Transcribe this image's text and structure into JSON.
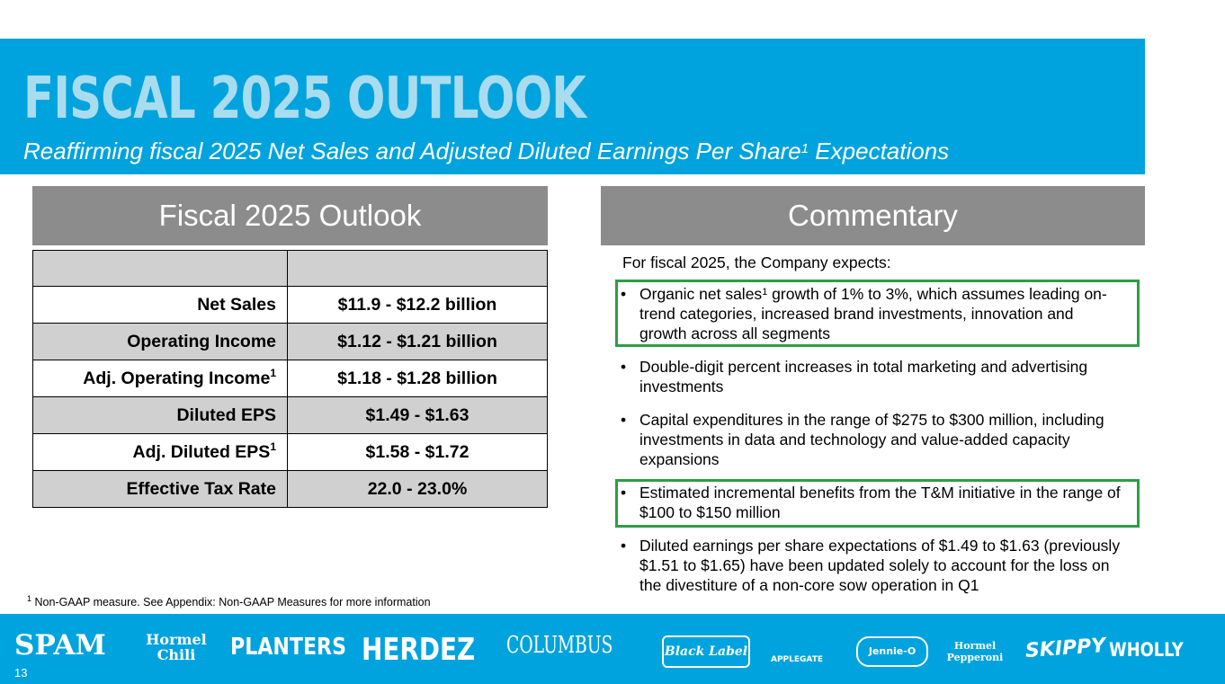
{
  "header": {
    "title": "FISCAL 2025 OUTLOOK",
    "subtitle_pre": "Reaffirming fiscal 2025 Net Sales and Adjusted Diluted Earnings Per Share",
    "subtitle_sup": "1",
    "subtitle_post": " Expectations"
  },
  "outlook": {
    "heading": "Fiscal 2025 Outlook",
    "rows": [
      {
        "label": "Net Sales",
        "sup": "",
        "value": "$11.9 - $12.2 billion"
      },
      {
        "label": "Operating Income",
        "sup": "",
        "value": "$1.12 - $1.21 billion"
      },
      {
        "label": "Adj. Operating Income",
        "sup": "1",
        "value": "$1.18 - $1.28 billion"
      },
      {
        "label": "Diluted EPS",
        "sup": "",
        "value": "$1.49 - $1.63"
      },
      {
        "label": "Adj. Diluted EPS",
        "sup": "1",
        "value": "$1.58 - $1.72"
      },
      {
        "label": "Effective Tax Rate",
        "sup": "",
        "value": "22.0 - 23.0%"
      }
    ]
  },
  "commentary": {
    "heading": "Commentary",
    "intro": "For fiscal 2025, the Company expects:",
    "bullet_char": "•",
    "bullets": [
      {
        "pre": "Organic net sales",
        "sup": "1",
        "post": " growth of 1% to 3%, which assumes leading on-trend categories, increased brand investments, innovation and growth across all segments"
      },
      {
        "pre": "Double-digit percent increases in total marketing and advertising investments",
        "sup": "",
        "post": ""
      },
      {
        "pre": "Capital expenditures in the range of $275 to $300 million, including investments in data and technology and value-added capacity expansions",
        "sup": "",
        "post": ""
      },
      {
        "pre": "Estimated incremental benefits from the T&M initiative in the range of $100 to $150 million",
        "sup": "",
        "post": ""
      },
      {
        "pre": "Diluted earnings per share expectations of $1.49 to $1.63 (previously $1.51 to $1.65) have been updated solely to account for the loss on the divestiture of a non-core sow operation in Q1",
        "sup": "",
        "post": ""
      }
    ],
    "highlight_color": "#2e9e45"
  },
  "footnote": {
    "sup": "1",
    "text": " Non-GAAP measure. See Appendix: Non-GAAP Measures for more information"
  },
  "brands": [
    "SPAM",
    "Hormel Chili",
    "PLANTERS",
    "HERDEZ",
    "COLUMBUS",
    "Black Label",
    "APPLEGATE",
    "Jennie-O",
    "Hormel Pepperoni",
    "SKIPPY",
    "WHOLLY"
  ],
  "page_number": "13",
  "colors": {
    "brand_blue": "#00a3dd",
    "title_light_blue": "#a9dcef",
    "panel_gray": "#8c8c8c",
    "row_gray": "#d0d0d0"
  }
}
